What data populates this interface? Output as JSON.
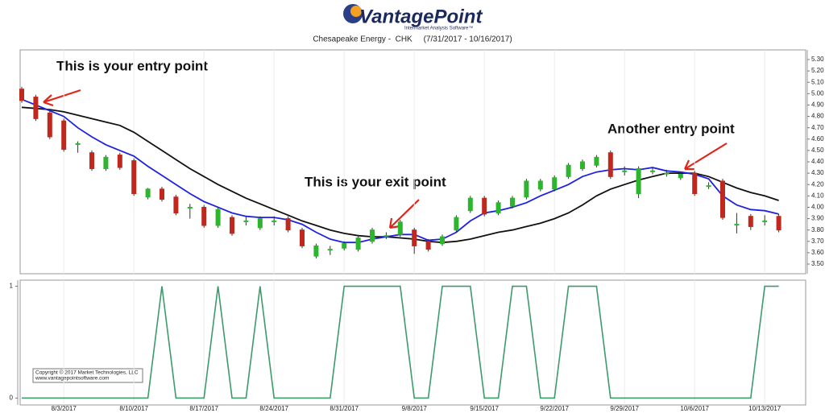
{
  "header": {
    "logo": "VantagePoint",
    "tagline": "Intermarket Analysis Software™"
  },
  "chart_data": [
    {
      "type": "candlestick",
      "title": "Chesapeake Energy -  CHK     (7/31/2017 - 10/16/2017)",
      "categories": [
        null,
        null,
        null,
        "8/3/2017",
        null,
        null,
        null,
        null,
        "8/10/2017",
        null,
        null,
        null,
        null,
        "8/17/2017",
        null,
        null,
        null,
        null,
        "8/24/2017",
        null,
        null,
        null,
        null,
        "8/31/2017",
        null,
        null,
        null,
        null,
        "9/8/2017",
        null,
        null,
        null,
        null,
        "9/15/2017",
        null,
        null,
        null,
        null,
        "9/22/2017",
        null,
        null,
        null,
        null,
        "9/29/2017",
        null,
        null,
        null,
        null,
        "10/6/2017",
        null,
        null,
        null,
        null,
        "10/13/2017",
        null
      ],
      "open": [
        5.04,
        4.97,
        4.83,
        4.76,
        4.56,
        4.48,
        4.34,
        4.46,
        4.41,
        4.09,
        4.16,
        4.09,
        4.0,
        4.0,
        3.84,
        3.91,
        3.88,
        3.82,
        3.88,
        3.9,
        3.8,
        3.57,
        3.63,
        3.64,
        3.63,
        3.7,
        3.75,
        3.76,
        3.8,
        3.7,
        3.68,
        3.8,
        3.97,
        4.08,
        3.95,
        4.01,
        4.09,
        4.16,
        4.16,
        4.27,
        4.34,
        4.37,
        4.48,
        4.32,
        4.12,
        4.32,
        4.3,
        4.26,
        4.3,
        4.19,
        4.23,
        3.85,
        3.92,
        3.88,
        3.92
      ],
      "high": [
        5.06,
        4.99,
        4.85,
        4.78,
        4.58,
        4.5,
        4.46,
        4.48,
        4.43,
        4.17,
        4.18,
        4.11,
        4.03,
        4.02,
        4.0,
        3.93,
        3.92,
        3.92,
        3.92,
        3.92,
        3.82,
        3.68,
        3.66,
        3.7,
        3.75,
        3.82,
        3.78,
        3.89,
        3.82,
        3.72,
        3.76,
        3.93,
        4.1,
        4.1,
        4.06,
        4.1,
        4.25,
        4.25,
        4.28,
        4.39,
        4.42,
        4.46,
        4.5,
        4.36,
        4.36,
        4.35,
        4.33,
        4.31,
        4.32,
        4.22,
        4.25,
        3.95,
        3.94,
        3.93,
        3.94
      ],
      "low": [
        4.92,
        4.76,
        4.6,
        4.49,
        4.48,
        4.32,
        4.32,
        4.33,
        4.1,
        4.07,
        4.05,
        3.93,
        3.9,
        3.82,
        3.82,
        3.75,
        3.84,
        3.8,
        3.84,
        3.78,
        3.64,
        3.55,
        3.58,
        3.62,
        3.61,
        3.68,
        3.72,
        3.74,
        3.59,
        3.61,
        3.66,
        3.78,
        3.95,
        3.92,
        3.93,
        3.99,
        4.07,
        4.14,
        4.14,
        4.25,
        4.32,
        4.35,
        4.25,
        4.28,
        4.08,
        4.29,
        4.27,
        4.24,
        4.1,
        4.16,
        3.89,
        3.77,
        3.8,
        3.84,
        3.78
      ],
      "close": [
        4.94,
        4.78,
        4.62,
        4.51,
        4.56,
        4.34,
        4.44,
        4.35,
        4.12,
        4.16,
        4.07,
        3.95,
        4.0,
        3.84,
        3.98,
        3.77,
        3.88,
        3.9,
        3.88,
        3.8,
        3.66,
        3.66,
        3.63,
        3.68,
        3.73,
        3.8,
        3.75,
        3.87,
        3.66,
        3.63,
        3.74,
        3.91,
        4.08,
        3.94,
        4.04,
        4.08,
        4.23,
        4.23,
        4.26,
        4.37,
        4.4,
        4.44,
        4.27,
        4.32,
        4.34,
        4.32,
        4.3,
        4.29,
        4.12,
        4.19,
        3.91,
        3.85,
        3.83,
        3.88,
        3.8
      ],
      "up_color": "#2db52d",
      "down_color": "#c0281e",
      "lines": [
        {
          "color": "#111111",
          "values": [
            4.88,
            4.87,
            4.86,
            4.84,
            4.81,
            4.78,
            4.75,
            4.72,
            4.66,
            4.58,
            4.5,
            4.42,
            4.34,
            4.27,
            4.2,
            4.14,
            4.08,
            4.03,
            3.98,
            3.93,
            3.88,
            3.84,
            3.8,
            3.77,
            3.75,
            3.74,
            3.74,
            3.73,
            3.72,
            3.7,
            3.69,
            3.7,
            3.72,
            3.75,
            3.78,
            3.8,
            3.83,
            3.86,
            3.9,
            3.95,
            4.02,
            4.1,
            4.16,
            4.2,
            4.24,
            4.27,
            4.3,
            4.3,
            4.3,
            4.27,
            4.22,
            4.17,
            4.13,
            4.1,
            4.06
          ]
        },
        {
          "color": "#1e22e0",
          "values": [
            4.95,
            4.9,
            4.85,
            4.8,
            4.7,
            4.62,
            4.55,
            4.5,
            4.45,
            4.36,
            4.28,
            4.2,
            4.12,
            4.05,
            4.0,
            3.95,
            3.92,
            3.91,
            3.91,
            3.89,
            3.85,
            3.78,
            3.72,
            3.69,
            3.69,
            3.72,
            3.74,
            3.76,
            3.76,
            3.71,
            3.72,
            3.78,
            3.88,
            3.95,
            3.97,
            4.0,
            4.04,
            4.1,
            4.15,
            4.2,
            4.27,
            4.31,
            4.33,
            4.34,
            4.33,
            4.35,
            4.32,
            4.31,
            4.29,
            4.25,
            4.1,
            4.02,
            3.98,
            3.97,
            3.94
          ]
        }
      ],
      "ylim": [
        3.415,
        5.385
      ],
      "yticks": [
        {
          "value": 3.5,
          "label": "3.50"
        },
        {
          "value": 3.6,
          "label": "3.60"
        },
        {
          "value": 3.7,
          "label": "3.70"
        },
        {
          "value": 3.8,
          "label": "3.80"
        },
        {
          "value": 3.9,
          "label": "3.90"
        },
        {
          "value": 4.0,
          "label": "4.00"
        },
        {
          "value": 4.1,
          "label": "4.10"
        },
        {
          "value": 4.2,
          "label": "4.20"
        },
        {
          "value": 4.3,
          "label": "4.30"
        },
        {
          "value": 4.4,
          "label": "4.40"
        },
        {
          "value": 4.5,
          "label": "4.50"
        },
        {
          "value": 4.6,
          "label": "4.60"
        },
        {
          "value": 4.7,
          "label": "4.70"
        },
        {
          "value": 4.8,
          "label": "4.80"
        },
        {
          "value": 4.9,
          "label": "4.90"
        },
        {
          "value": 5.0,
          "label": "5.00"
        },
        {
          "value": 5.1,
          "label": "5.10"
        },
        {
          "value": 5.2,
          "label": "5.20"
        },
        {
          "value": 5.3,
          "label": "5.30"
        }
      ],
      "annotations": [
        "This is your entry point",
        "This is your exit point",
        "Another entry point"
      ]
    },
    {
      "type": "line",
      "color": "#3d9b6b",
      "values": [
        0,
        0,
        0,
        0,
        0,
        0,
        0,
        0,
        0,
        0,
        1,
        0,
        0,
        0,
        1,
        0,
        0,
        1,
        0,
        0,
        0,
        0,
        0,
        1,
        1,
        1,
        1,
        1,
        0,
        0,
        1,
        1,
        1,
        0,
        0,
        1,
        1,
        0,
        0,
        1,
        1,
        1,
        0,
        0,
        0,
        0,
        0,
        0,
        0,
        0,
        0,
        0,
        0,
        1,
        1
      ],
      "ylim": [
        -0.04,
        1.04
      ],
      "yticks": [
        0,
        1
      ],
      "annotations": [
        "Copyright © 2017 Market Technologies, LLC",
        "www.vantagepointsoftware.com"
      ]
    }
  ]
}
